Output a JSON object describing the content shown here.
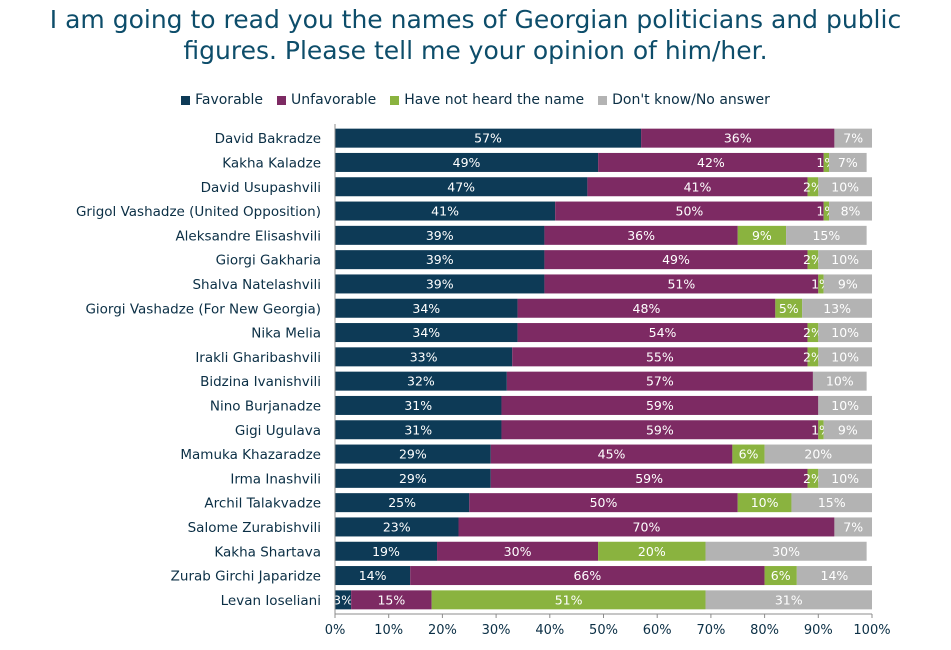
{
  "title": {
    "line1": "I am going to read you the names of Georgian politicians and public",
    "line2": "figures. Please tell me your opinion of him/her."
  },
  "chart_data": {
    "type": "bar",
    "orientation": "horizontal",
    "stacked": true,
    "categories": [
      "David Bakradze",
      "Kakha Kaladze",
      "David Usupashvili",
      "Grigol Vashadze (United Opposition)",
      "Aleksandre Elisashvili",
      "Giorgi Gakharia",
      "Shalva Natelashvili",
      "Giorgi Vashadze (For New Georgia)",
      "Nika Melia",
      "Irakli Gharibashvili",
      "Bidzina Ivanishvili",
      "Nino Burjanadze",
      "Gigi Ugulava",
      "Mamuka Khazaradze",
      "Irma Inashvili",
      "Archil Talakvadze",
      "Salome Zurabishvili",
      "Kakha Shartava",
      "Zurab Girchi Japaridze",
      "Levan Ioseliani"
    ],
    "series": [
      {
        "name": "Favorable",
        "color": "#0d3a56",
        "values": [
          57,
          49,
          47,
          41,
          39,
          39,
          39,
          34,
          34,
          33,
          32,
          31,
          31,
          29,
          29,
          25,
          23,
          19,
          14,
          3
        ]
      },
      {
        "name": "Unfavorable",
        "color": "#7d2a63",
        "values": [
          36,
          42,
          41,
          50,
          36,
          49,
          51,
          48,
          54,
          55,
          57,
          59,
          59,
          45,
          59,
          50,
          70,
          30,
          66,
          15
        ]
      },
      {
        "name": "Have not heard the name",
        "color": "#8ab33f",
        "values": [
          0,
          1,
          2,
          1,
          9,
          2,
          1,
          5,
          2,
          2,
          0,
          0,
          1,
          6,
          2,
          10,
          0,
          20,
          6,
          51
        ]
      },
      {
        "name": "Don't know/No answer",
        "color": "#b3b3b3",
        "values": [
          7,
          7,
          10,
          8,
          15,
          10,
          9,
          13,
          10,
          10,
          10,
          10,
          9,
          20,
          10,
          15,
          7,
          30,
          14,
          31
        ]
      }
    ],
    "value_suffix": "%",
    "xlim": [
      0,
      100
    ],
    "xticks": [
      "0%",
      "10%",
      "20%",
      "30%",
      "40%",
      "50%",
      "60%",
      "70%",
      "80%",
      "90%",
      "100%"
    ],
    "legend_position": "top"
  }
}
